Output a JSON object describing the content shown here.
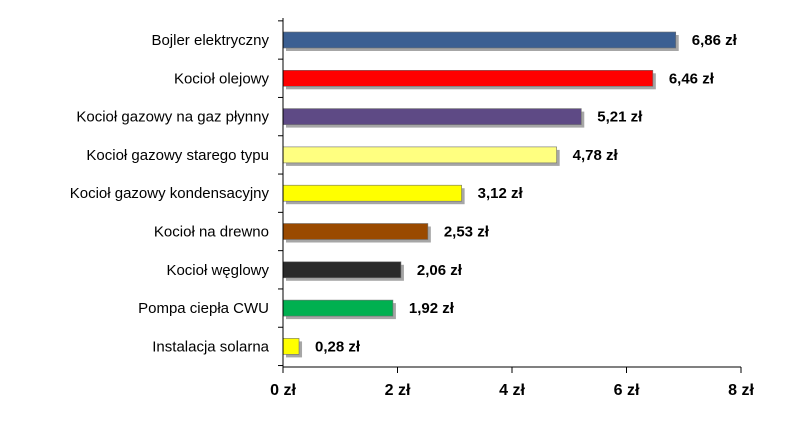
{
  "chart_data": {
    "type": "bar",
    "orientation": "horizontal",
    "title": "",
    "xlabel": "",
    "ylabel": "",
    "xlim": [
      0,
      8
    ],
    "grid": false,
    "legend": "none",
    "categories": [
      "Bojler elektryczny",
      "Kocioł olejowy",
      "Kocioł gazowy na gaz płynny",
      "Kocioł gazowy starego typu",
      "Kocioł gazowy kondensacyjny",
      "Kocioł na drewno",
      "Kocioł węglowy",
      "Pompa ciepła CWU",
      "Instalacja solarna"
    ],
    "values": [
      6.86,
      6.46,
      5.21,
      4.78,
      3.12,
      2.53,
      2.06,
      1.92,
      0.28
    ],
    "value_labels": [
      "6,86 zł",
      "6,46 zł",
      "5,21 zł",
      "4,78 zł",
      "3,12 zł",
      "2,53 zł",
      "2,06 zł",
      "1,92 zł",
      "0,28 zł"
    ],
    "colors": [
      "#3B5F92",
      "#FF0000",
      "#5E4A85",
      "#FFFF80",
      "#FFFF00",
      "#9A4A00",
      "#2A2A2A",
      "#00B050",
      "#FFFF00"
    ],
    "x_ticks": [
      0,
      2,
      4,
      6,
      8
    ],
    "x_tick_labels": [
      "0 zł",
      "2 zł",
      "4 zł",
      "6 zł",
      "8 zł"
    ]
  }
}
